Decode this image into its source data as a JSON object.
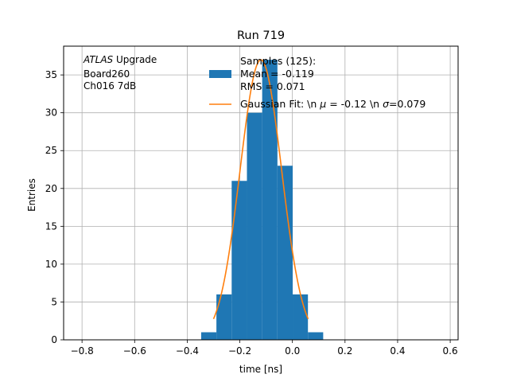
{
  "chart_data": {
    "type": "bar",
    "title": "Run 719",
    "xlabel": "time [ns]",
    "ylabel": "Entries",
    "xlim": [
      -0.87,
      0.63
    ],
    "ylim": [
      0,
      38.8
    ],
    "grid": true,
    "x_ticks": [
      -0.8,
      -0.6,
      -0.4,
      -0.2,
      0.0,
      0.2,
      0.4,
      0.6
    ],
    "x_tick_labels": [
      "−0.8",
      "−0.6",
      "−0.4",
      "−0.2",
      "0.0",
      "0.2",
      "0.4",
      "0.6"
    ],
    "y_ticks": [
      0,
      5,
      10,
      15,
      20,
      25,
      30,
      35
    ],
    "y_tick_labels": [
      "0",
      "5",
      "10",
      "15",
      "20",
      "25",
      "30",
      "35"
    ],
    "histogram": {
      "bin_edges": [
        -0.347,
        -0.289,
        -0.231,
        -0.173,
        -0.115,
        -0.057,
        0.001,
        0.059,
        0.117
      ],
      "counts": [
        1,
        6,
        21,
        30,
        37,
        23,
        6,
        1
      ],
      "color": "#1f77b4"
    },
    "fit": {
      "mu": -0.12,
      "sigma": 0.079,
      "amplitude": 37,
      "x_range": [
        -0.3,
        0.06
      ],
      "color": "#ff7f0e"
    },
    "annotation": {
      "line1_italic": "ATLAS",
      "line1_rest": " Upgrade",
      "line2": " Board260",
      "line3": " Ch016 7dB"
    },
    "legend": {
      "position": "top-right",
      "entries": [
        {
          "kind": "patch",
          "color": "#1f77b4",
          "lines": [
            "Samples (125):",
            " Mean = -0.119",
            " RMS = 0.071"
          ]
        },
        {
          "kind": "line",
          "color": "#ff7f0e",
          "text_parts": [
            {
              "t": "Gaussian Fit: \\n ",
              "i": false
            },
            {
              "t": "μ",
              "i": true
            },
            {
              "t": " = -0.12 \\n ",
              "i": false
            },
            {
              "t": "σ",
              "i": true
            },
            {
              "t": "=0.079",
              "i": false
            }
          ]
        }
      ]
    }
  }
}
